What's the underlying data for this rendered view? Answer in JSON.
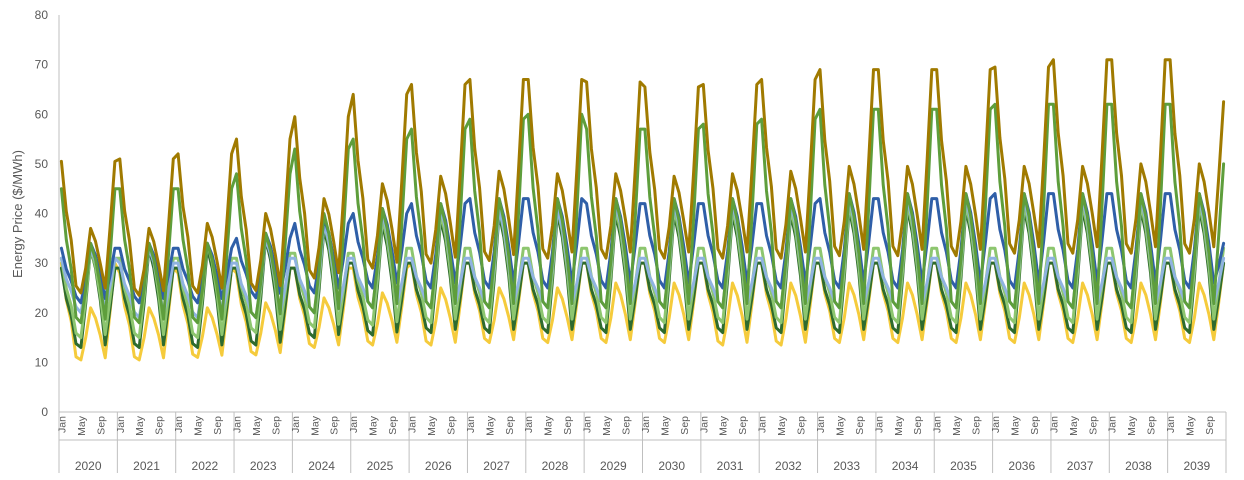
{
  "chart_data": {
    "type": "line",
    "title": "",
    "ylabel": "Energy Price ($/MWh)",
    "xlabel": "",
    "ylim": [
      0,
      80
    ],
    "yticks": [
      0,
      10,
      20,
      30,
      40,
      50,
      60,
      70,
      80
    ],
    "grid": false,
    "legend": "none",
    "month_labels": [
      "Jan",
      "May",
      "Sep"
    ],
    "years": [
      "2020",
      "2021",
      "2022",
      "2023",
      "2024",
      "2025",
      "2026",
      "2027",
      "2028",
      "2029",
      "2030",
      "2031",
      "2032",
      "2033",
      "2034",
      "2035",
      "2036",
      "2037",
      "2038",
      "2039"
    ],
    "months_per_year": 12,
    "series": [
      {
        "color": "#f5cb3c",
        "jan": [
          30,
          28,
          28,
          28,
          29,
          29,
          30,
          30,
          30,
          30,
          30,
          30,
          30,
          30,
          30,
          30,
          30,
          30,
          30,
          30
        ],
        "summer_peak": [
          21,
          21,
          21,
          22,
          23,
          24,
          25,
          25,
          25,
          26,
          26,
          26,
          26,
          26,
          26,
          26,
          26,
          26,
          26,
          26
        ],
        "spring_low": [
          10.5,
          10.5,
          11,
          11.5,
          13,
          13.5,
          13.5,
          14,
          14,
          14,
          14,
          13.5,
          13.5,
          14,
          14,
          14,
          14,
          14,
          14,
          14
        ],
        "winter_end": [
          30,
          29,
          29,
          29,
          29,
          29,
          30,
          30,
          30,
          30,
          30,
          30,
          30,
          30,
          30,
          30,
          30,
          30,
          30,
          30
        ]
      },
      {
        "color": "#2e6b2e",
        "jan": [
          29,
          29,
          29,
          29,
          29,
          30,
          30,
          30,
          30,
          30,
          30,
          30,
          30,
          30,
          30,
          30,
          30,
          30,
          30,
          30
        ],
        "summer_peak": [
          33,
          33,
          33,
          35,
          37,
          38,
          39,
          40,
          40,
          40,
          40,
          40,
          40,
          41,
          41,
          41,
          41,
          41,
          41,
          41
        ],
        "spring_low": [
          13,
          13,
          13,
          13.5,
          15,
          15.5,
          16,
          16,
          16,
          16,
          16,
          16,
          16,
          16,
          16,
          16,
          16,
          16,
          16,
          16
        ],
        "winter_end": [
          29,
          29,
          29,
          29,
          30,
          30,
          30,
          30,
          30,
          30,
          30,
          30,
          30,
          30,
          30,
          30,
          30,
          30,
          30,
          30
        ]
      },
      {
        "color": "#8dc66f",
        "jan": [
          31,
          31,
          31,
          31,
          32,
          32,
          33,
          33,
          33,
          33,
          33,
          33,
          33,
          33,
          33,
          33,
          33,
          33,
          33,
          33
        ],
        "summer_peak": [
          33,
          34,
          34,
          36,
          38,
          39,
          40,
          41,
          41,
          41,
          41,
          41,
          41,
          42,
          42,
          42,
          42,
          42,
          42,
          42
        ],
        "spring_low": [
          15,
          15,
          15,
          16,
          17,
          17.5,
          18,
          18,
          18,
          18,
          18,
          18,
          18,
          18,
          18,
          18,
          18,
          18,
          18,
          18
        ],
        "winter_end": [
          31,
          31,
          31,
          32,
          32,
          33,
          33,
          33,
          33,
          33,
          33,
          33,
          33,
          33,
          33,
          33,
          33,
          33,
          33,
          33
        ]
      },
      {
        "color": "#8fb3e0",
        "jan": [
          31,
          30,
          30,
          30,
          31,
          31,
          31,
          31,
          31,
          31,
          31,
          31,
          31,
          31,
          31,
          31,
          31,
          31,
          31,
          31
        ],
        "summer_peak": [
          33,
          33,
          34,
          35,
          38,
          40,
          41,
          41,
          41,
          42,
          42,
          42,
          42,
          43,
          43,
          43,
          43,
          43,
          43,
          43
        ],
        "spring_low": [
          20,
          19,
          19,
          19,
          20,
          21,
          21,
          21,
          21,
          21,
          21,
          21,
          21,
          21,
          21,
          21,
          21,
          21,
          21,
          21
        ],
        "winter_end": [
          31,
          30,
          30,
          31,
          31,
          31,
          31,
          31,
          31,
          31,
          31,
          31,
          31,
          31,
          31,
          31,
          31,
          31,
          31,
          31
        ]
      },
      {
        "color": "#2f5fa8",
        "jan": [
          33,
          33,
          33,
          35,
          38,
          40,
          42,
          43,
          43,
          42,
          42,
          42,
          42,
          43,
          43,
          43,
          44,
          44,
          44,
          44
        ],
        "summer_peak": [
          34,
          34,
          34,
          36,
          39,
          41,
          42,
          43,
          43,
          43,
          43,
          43,
          43,
          44,
          44,
          44,
          44,
          44,
          44,
          44
        ],
        "spring_low": [
          22,
          22,
          22,
          23,
          24,
          25,
          25,
          25,
          25,
          25,
          25,
          25,
          25,
          25,
          25,
          25,
          25,
          25,
          25,
          25
        ],
        "winter_end": [
          33,
          33,
          33,
          35,
          38,
          40,
          42,
          43,
          43,
          42,
          42,
          42,
          42,
          43,
          43,
          43,
          44,
          44,
          44,
          34
        ]
      },
      {
        "color": "#5e9e3c",
        "jan": [
          45,
          45,
          45,
          48,
          53,
          55,
          57,
          59,
          60,
          57,
          57,
          58,
          59,
          61,
          61,
          61,
          62,
          62,
          62,
          62
        ],
        "summer_peak": [
          34,
          34,
          34,
          36,
          40,
          41,
          42,
          43,
          43,
          43,
          43,
          43,
          43,
          44,
          44,
          44,
          44,
          44,
          44,
          44
        ],
        "spring_low": [
          18,
          18,
          18,
          19,
          20,
          21,
          21,
          21,
          21,
          21,
          21,
          21,
          21,
          21,
          21,
          21,
          21,
          21,
          21,
          21
        ],
        "winter_end": [
          45,
          45,
          45,
          48,
          53,
          55,
          57,
          59,
          60,
          57,
          57,
          58,
          59,
          61,
          61,
          61,
          62,
          62,
          62,
          50
        ]
      },
      {
        "color": "#a07a00",
        "jan": [
          50.5,
          51,
          52,
          55,
          59.5,
          64,
          66,
          67,
          67,
          66.5,
          65.5,
          66,
          67,
          69,
          69,
          69,
          69.5,
          71,
          71,
          71
        ],
        "summer_peak": [
          37,
          37,
          38,
          40,
          43,
          46,
          47.5,
          48.5,
          48,
          48,
          47.5,
          48,
          48.5,
          49.5,
          49.5,
          49.5,
          49.5,
          49.5,
          50,
          50
        ],
        "spring_low": [
          24,
          23.5,
          24,
          24.5,
          27,
          29,
          30,
          30.5,
          31,
          31,
          31,
          31,
          31,
          31.5,
          31.5,
          31.5,
          32,
          32,
          32,
          32
        ],
        "winter_end": [
          50.5,
          51,
          52,
          55,
          59.5,
          64,
          66,
          67,
          67,
          66.5,
          65.5,
          66,
          67,
          69,
          69,
          69,
          69.5,
          71,
          71,
          62.5
        ]
      }
    ]
  }
}
